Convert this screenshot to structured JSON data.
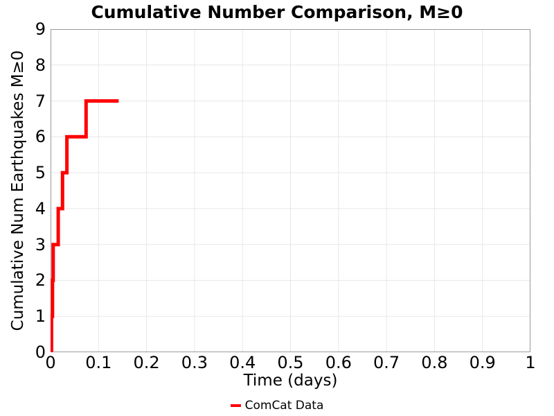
{
  "chart_data": {
    "type": "line",
    "subtype": "cumulative-step",
    "title": "Cumulative Number Comparison, M≥0",
    "xlabel": "Time (days)",
    "ylabel": "Cumulative Num Earthquakes M≥0",
    "xlim": [
      0,
      1
    ],
    "ylim": [
      0,
      9
    ],
    "x_ticks": [
      0,
      0.1,
      0.2,
      0.3,
      0.4,
      0.5,
      0.6,
      0.7,
      0.8,
      0.9,
      1
    ],
    "x_tick_labels": [
      "0",
      "0.1",
      "0.2",
      "0.3",
      "0.4",
      "0.5",
      "0.6",
      "0.7",
      "0.8",
      "0.9",
      "1"
    ],
    "y_ticks": [
      0,
      1,
      2,
      3,
      4,
      5,
      6,
      7,
      8,
      9
    ],
    "y_tick_labels": [
      "0",
      "1",
      "2",
      "3",
      "4",
      "5",
      "6",
      "7",
      "8",
      "9"
    ],
    "grid": true,
    "legend_position": "bottom-center",
    "series": [
      {
        "name": "ComCat Data",
        "color": "#ff0000",
        "line_width": 5,
        "event_times_days": [
          0.002,
          0.004,
          0.0055,
          0.016,
          0.025,
          0.034,
          0.074
        ],
        "cumulative_counts": [
          1,
          2,
          3,
          4,
          5,
          6,
          7
        ],
        "last_time_days": 0.142
      }
    ],
    "colors": {
      "grid": "#e7e7e7",
      "frame": "#999999",
      "text": "#000000",
      "background": "#ffffff"
    }
  }
}
